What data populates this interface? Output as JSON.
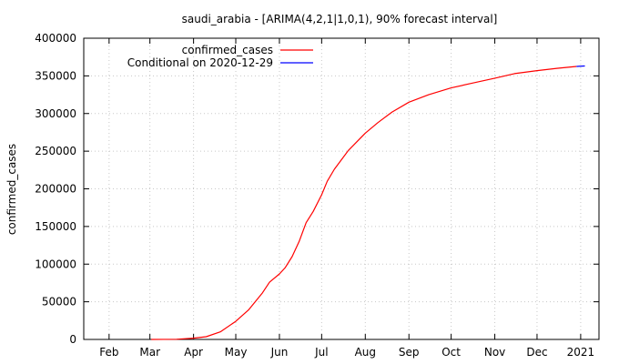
{
  "chart_data": {
    "type": "line",
    "title": "saudi_arabia -  [ARIMA(4,2,1|1,0,1), 90% forecast interval]",
    "xlabel": "",
    "ylabel": "confirmed_cases",
    "ylim": [
      0,
      400000
    ],
    "y_ticks": [
      0,
      50000,
      100000,
      150000,
      200000,
      250000,
      300000,
      350000,
      400000
    ],
    "x_range": [
      "2020-01-14",
      "2021-01-14"
    ],
    "x_ticks": [
      {
        "date": "2020-02-01",
        "label": "Feb"
      },
      {
        "date": "2020-03-01",
        "label": "Mar"
      },
      {
        "date": "2020-04-01",
        "label": "Apr"
      },
      {
        "date": "2020-05-01",
        "label": "May"
      },
      {
        "date": "2020-06-01",
        "label": "Jun"
      },
      {
        "date": "2020-07-01",
        "label": "Jul"
      },
      {
        "date": "2020-08-01",
        "label": "Aug"
      },
      {
        "date": "2020-09-01",
        "label": "Sep"
      },
      {
        "date": "2020-10-01",
        "label": "Oct"
      },
      {
        "date": "2020-11-01",
        "label": "Nov"
      },
      {
        "date": "2020-12-01",
        "label": "Dec"
      },
      {
        "date": "2021-01-01",
        "label": "2021"
      }
    ],
    "grid": true,
    "legend_position": "top-left",
    "series": [
      {
        "name": "confirmed_cases",
        "color": "#ff0000",
        "points": [
          [
            "2020-03-02",
            0
          ],
          [
            "2020-03-20",
            270
          ],
          [
            "2020-04-01",
            1700
          ],
          [
            "2020-04-10",
            3600
          ],
          [
            "2020-04-20",
            10000
          ],
          [
            "2020-05-01",
            24000
          ],
          [
            "2020-05-10",
            39000
          ],
          [
            "2020-05-20",
            62000
          ],
          [
            "2020-05-25",
            76000
          ],
          [
            "2020-06-01",
            87000
          ],
          [
            "2020-06-05",
            95000
          ],
          [
            "2020-06-10",
            110000
          ],
          [
            "2020-06-15",
            130000
          ],
          [
            "2020-06-20",
            155000
          ],
          [
            "2020-06-25",
            170000
          ],
          [
            "2020-07-01",
            192000
          ],
          [
            "2020-07-05",
            210000
          ],
          [
            "2020-07-10",
            226000
          ],
          [
            "2020-07-20",
            251000
          ],
          [
            "2020-08-01",
            274000
          ],
          [
            "2020-08-10",
            288000
          ],
          [
            "2020-08-20",
            302000
          ],
          [
            "2020-09-01",
            315000
          ],
          [
            "2020-09-15",
            325000
          ],
          [
            "2020-10-01",
            334000
          ],
          [
            "2020-10-15",
            340000
          ],
          [
            "2020-11-01",
            347000
          ],
          [
            "2020-11-15",
            353000
          ],
          [
            "2020-12-01",
            357000
          ],
          [
            "2020-12-15",
            360000
          ],
          [
            "2020-12-29",
            362500
          ]
        ]
      },
      {
        "name": "Conditional on 2020-12-29",
        "color": "#0000ff",
        "points": [
          [
            "2020-12-29",
            362500
          ],
          [
            "2021-01-04",
            363200
          ]
        ]
      }
    ]
  }
}
